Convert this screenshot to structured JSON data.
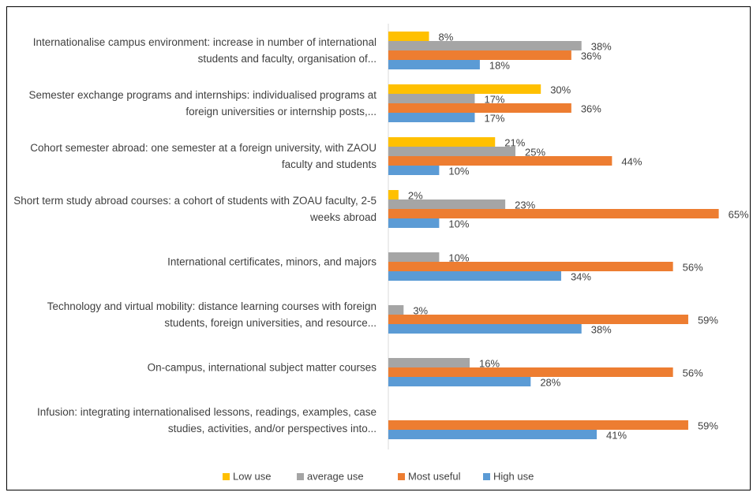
{
  "chart_data": {
    "type": "hbar",
    "categories": [
      "Internationalise campus environment: increase in number of international students and faculty, organisation of...",
      "Semester exchange programs and internships: individualised programs at foreign universities or internship posts,...",
      "Cohort semester abroad: one semester at a foreign university, with ZAOU faculty and students",
      "Short term study abroad courses: a cohort of students with ZOAU faculty, 2-5 weeks abroad",
      "International certificates, minors, and majors",
      "Technology and virtual mobility: distance learning courses with foreign students, foreign universities, and resource...",
      "On-campus, international subject matter courses",
      "Infusion: integrating internationalised lessons, readings, examples, case studies, activities, and/or perspectives into..."
    ],
    "series": [
      {
        "name": "Low use",
        "color": "#ffc000",
        "values": [
          8,
          30,
          21,
          2,
          null,
          null,
          null,
          null
        ],
        "value_labels": [
          "8%",
          "30%",
          "21%",
          "2%",
          null,
          null,
          null,
          null
        ]
      },
      {
        "name": "average use",
        "color": "#a5a5a5",
        "values": [
          38,
          17,
          25,
          23,
          10,
          3,
          16,
          null
        ],
        "value_labels": [
          "38%",
          "17%",
          "25%",
          "23%",
          "10%",
          "3%",
          "16%",
          null
        ]
      },
      {
        "name": "Most useful",
        "color": "#ed7d31",
        "values": [
          36,
          36,
          44,
          65,
          56,
          59,
          56,
          59
        ],
        "value_labels": [
          "36%",
          "36%",
          "44%",
          "65%",
          "56%",
          "59%",
          "56%",
          "59%"
        ]
      },
      {
        "name": "High use",
        "color": "#5b9bd5",
        "values": [
          18,
          17,
          10,
          10,
          34,
          38,
          28,
          41
        ],
        "value_labels": [
          "18%",
          "17%",
          "10%",
          "10%",
          "34%",
          "38%",
          "28%",
          "41%"
        ]
      }
    ],
    "legend": "bottom"
  }
}
